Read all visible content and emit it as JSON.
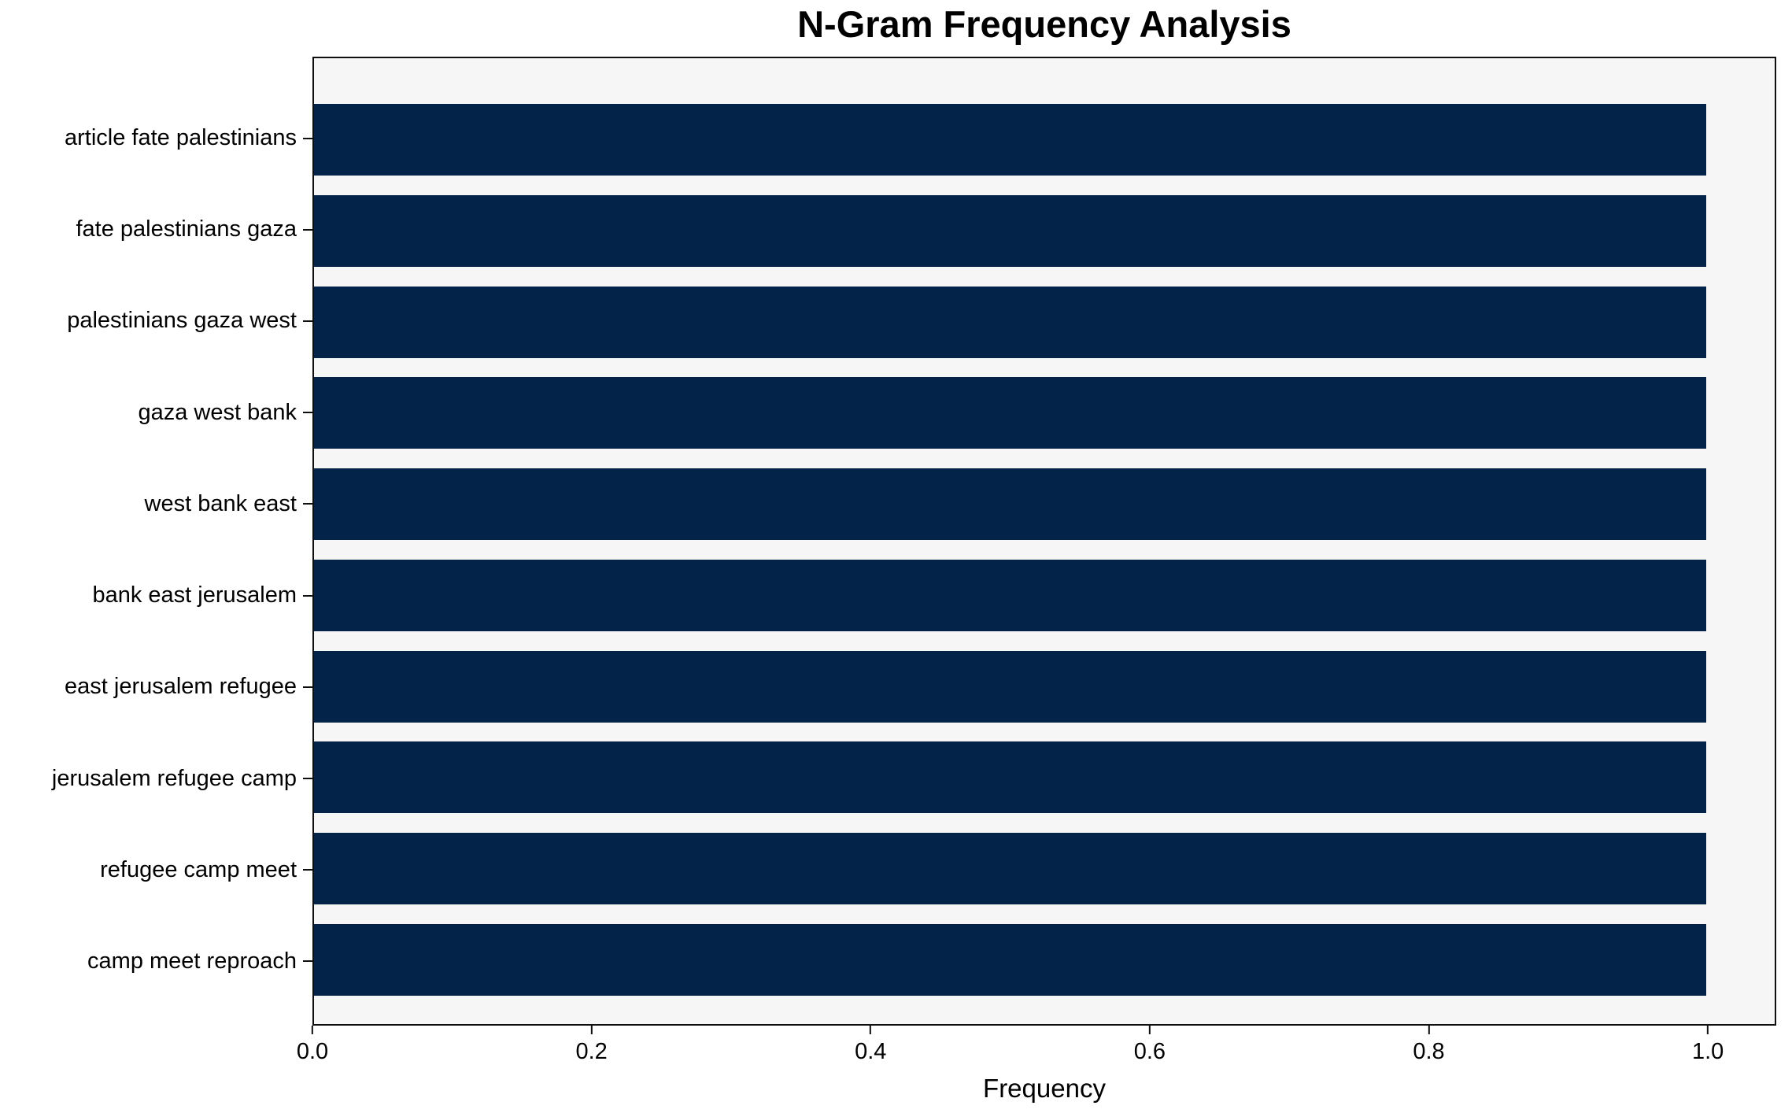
{
  "chart_data": {
    "type": "bar",
    "orientation": "horizontal",
    "title": "N-Gram Frequency Analysis",
    "xlabel": "Frequency",
    "ylabel": "",
    "categories": [
      "article fate palestinians",
      "fate palestinians gaza",
      "palestinians gaza west",
      "gaza west bank",
      "west bank east",
      "bank east jerusalem",
      "east jerusalem refugee",
      "jerusalem refugee camp",
      "refugee camp meet",
      "camp meet reproach"
    ],
    "values": [
      1.0,
      1.0,
      1.0,
      1.0,
      1.0,
      1.0,
      1.0,
      1.0,
      1.0,
      1.0
    ],
    "x_ticks": [
      0.0,
      0.2,
      0.4,
      0.6,
      0.8,
      1.0
    ],
    "x_tick_labels": [
      "0.0",
      "0.2",
      "0.4",
      "0.6",
      "0.8",
      "1.0"
    ],
    "xlim": [
      0,
      1.049
    ],
    "grid": false,
    "legend": false,
    "colors": {
      "bar": "#042349",
      "plot_background": "#f6f6f7",
      "figure_background": "#ffffff",
      "spine": "#0f0f0f",
      "text": "#000000"
    }
  }
}
